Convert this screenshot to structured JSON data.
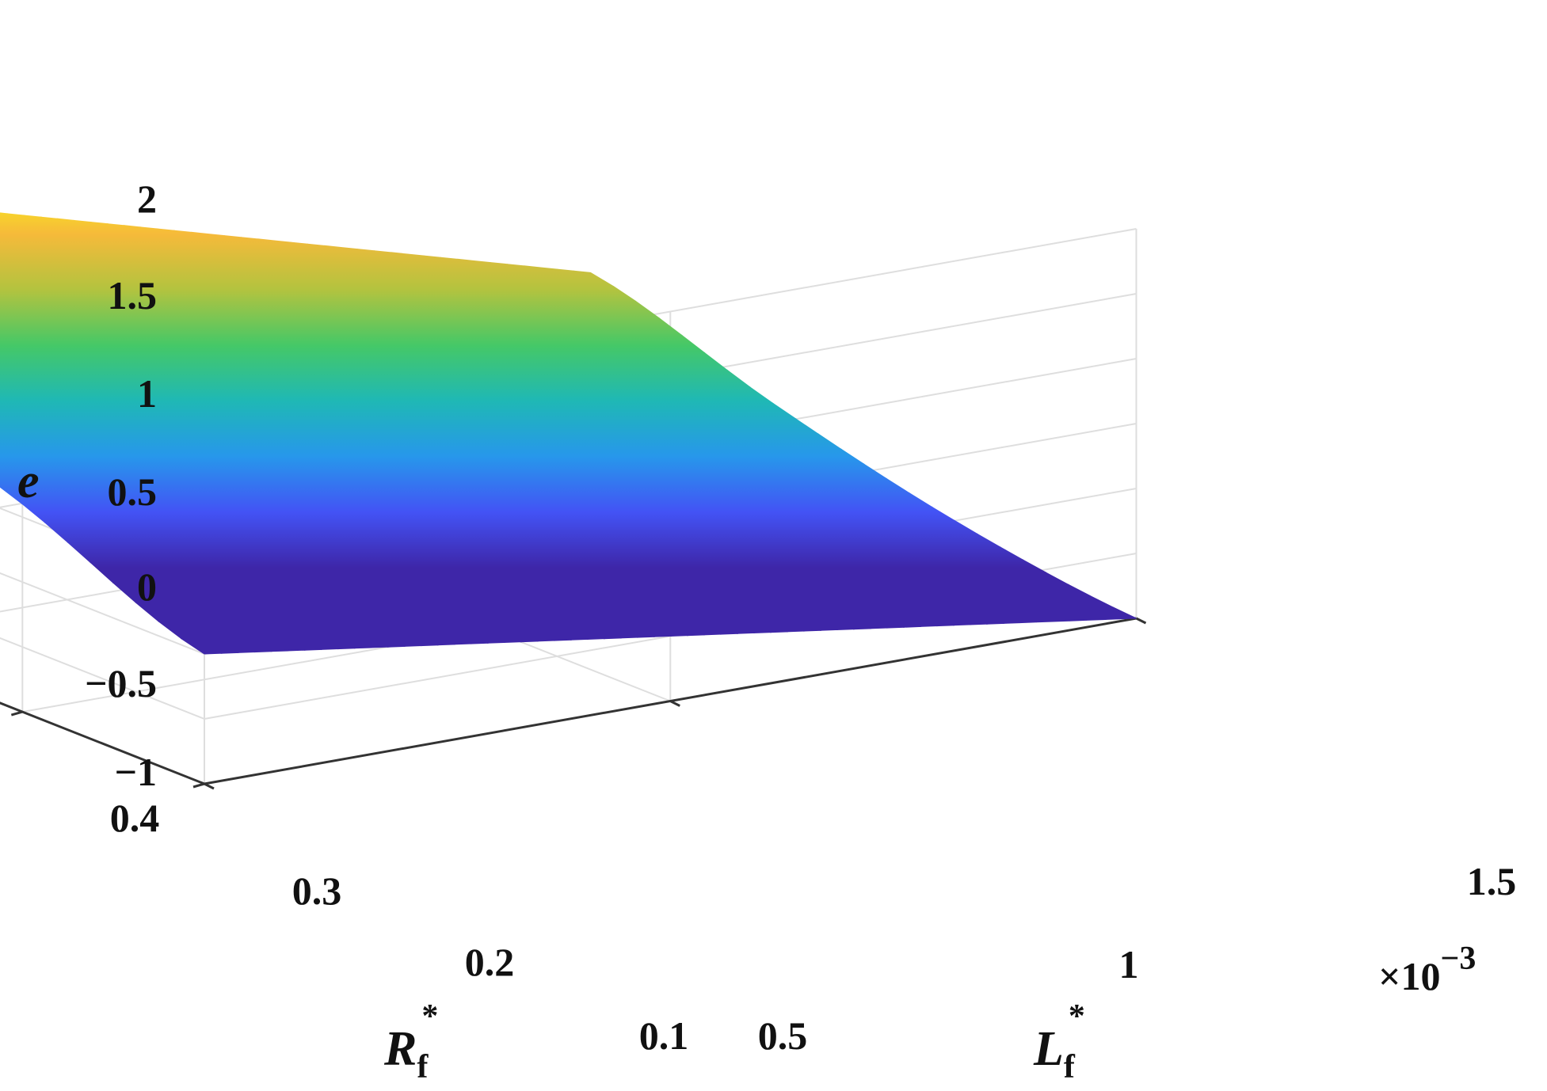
{
  "chart_data": {
    "type": "surface",
    "title": "",
    "axes": {
      "x": {
        "name": "L",
        "subscript": "f",
        "superscript": "*",
        "range": [
          0.0005,
          0.0015
        ],
        "ticks": [
          0.0005,
          0.001,
          0.0015
        ],
        "tick_labels": [
          "0.5",
          "1",
          "1.5"
        ],
        "exponent_label": "×10",
        "exponent_power": "−3"
      },
      "y": {
        "name": "R",
        "subscript": "f",
        "superscript": "*",
        "range": [
          0.1,
          0.4
        ],
        "ticks": [
          0.1,
          0.2,
          0.3,
          0.4
        ],
        "tick_labels": [
          "0.1",
          "0.2",
          "0.3",
          "0.4"
        ]
      },
      "z": {
        "name": "e",
        "range": [
          -1,
          2
        ],
        "ticks": [
          -1,
          -0.5,
          0,
          0.5,
          1,
          1.5,
          2
        ],
        "tick_labels": [
          "−1",
          "−0.5",
          "0",
          "0.5",
          "1",
          "1.5",
          "2"
        ]
      }
    },
    "grid": true,
    "colormap": "parula",
    "colormap_stops": [
      "#3e26a8",
      "#4353f5",
      "#2797eb",
      "#1fb8b5",
      "#45c867",
      "#b3c33f",
      "#f6ba3a",
      "#f9fb15"
    ],
    "surface_corners": [
      {
        "L": 0.0005,
        "R": 0.4,
        "e": 2.0
      },
      {
        "L": 0.0015,
        "R": 0.4,
        "e": 0.0
      },
      {
        "L": 0.0005,
        "R": 0.1,
        "e": 0.0
      },
      {
        "L": 0.0015,
        "R": 0.1,
        "e": -1.0
      }
    ],
    "surface_edge_points": {
      "L_min_edge": [
        {
          "R": 0.4,
          "e": 2.0
        },
        {
          "R": 0.3,
          "e": 1.1
        },
        {
          "R": 0.2,
          "e": 0.6
        },
        {
          "R": 0.1,
          "e": 0.0
        }
      ],
      "L_max_edge": [
        {
          "R": 0.4,
          "e": 0.0
        },
        {
          "R": 0.3,
          "e": -0.45
        },
        {
          "R": 0.2,
          "e": -0.8
        },
        {
          "R": 0.1,
          "e": -1.0
        }
      ]
    }
  }
}
